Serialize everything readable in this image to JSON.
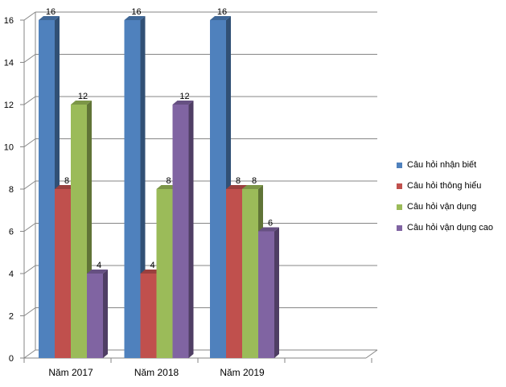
{
  "chart_data": {
    "type": "bar",
    "categories": [
      "Năm 2017",
      "Năm 2018",
      "Năm 2019"
    ],
    "series": [
      {
        "name": "Câu hỏi nhận biết",
        "values": [
          16,
          16,
          16
        ],
        "color": "#4F81BD"
      },
      {
        "name": "Câu hỏi thông hiểu",
        "values": [
          8,
          4,
          8
        ],
        "color": "#C0504D"
      },
      {
        "name": "Câu hỏi vận dụng",
        "values": [
          12,
          8,
          8
        ],
        "color": "#9BBB59"
      },
      {
        "name": "Câu hỏi vận dụng cao",
        "values": [
          4,
          12,
          6
        ],
        "color": "#8064A2"
      }
    ],
    "yticks": [
      "0",
      "2",
      "4",
      "6",
      "8",
      "10",
      "12",
      "14",
      "16"
    ],
    "ylim": [
      0,
      16
    ],
    "grid": true,
    "legend_position": "right",
    "style": "3d-clustered-column"
  }
}
